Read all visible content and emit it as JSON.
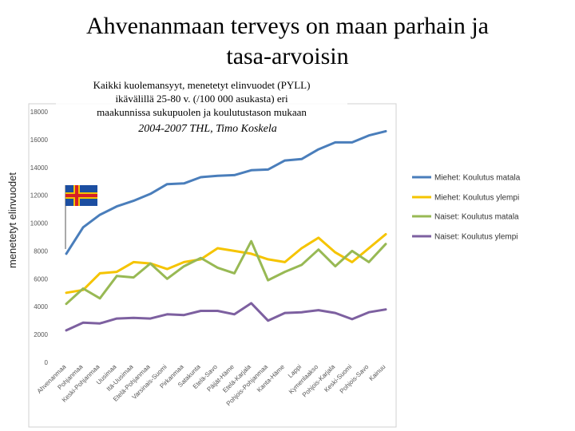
{
  "title_line1": "Ahvenanmaan terveys on maan parhain ja",
  "title_line2": "tasa-arvoisin",
  "subtitle_lines": [
    "Kaikki kuolemansyyt, menetetyt elinvuodet (PYLL)",
    "ikävälillä 25-80 v. (/100 000 asukasta) eri",
    "maakunnissa sukupuolen ja koulutustason mukaan"
  ],
  "source": "2004-2007 THL, Timo Koskela",
  "flag_icon": "aland-flag",
  "chart_data": {
    "type": "line",
    "title": "Kaikki kuolemansyyt, menetetyt elinvuodet (PYLL) ikävälillä 25-80 v. (/100 000 asukasta) eri maakunnissa sukupuolen ja koulutustason mukaan",
    "ylabel": "menetetyt elinvuodet",
    "xlabel": "",
    "ylim": [
      0,
      18000
    ],
    "yticks": [
      0,
      2000,
      4000,
      6000,
      8000,
      10000,
      12000,
      14000,
      16000,
      18000
    ],
    "grid": false,
    "legend": "right",
    "categories": [
      "Ahvenanmaa",
      "Pohjanmaa",
      "Keski-Pohjanmaa",
      "Uusimaa",
      "Itä-Uusimaa",
      "Etelä-Pohjanmaa",
      "Varsinais-Suomi",
      "Pirkanmaa",
      "Satakunta",
      "Etelä-Savo",
      "Päijät-Häme",
      "Etelä-Karjala",
      "Pohjois-Pohjanmaa",
      "Kanta-Häme",
      "Lappi",
      "Kymenlaakso",
      "Pohjois-Karjala",
      "Keski-Suomi",
      "Pohjois-Savo",
      "Kainuu"
    ],
    "series": [
      {
        "name": "Miehet: Koulutus matala",
        "color": "#4a7ebb",
        "values": [
          7800,
          9700,
          10600,
          11200,
          11600,
          12100,
          12800,
          12850,
          13300,
          13400,
          13450,
          13800,
          13850,
          14500,
          14600,
          15300,
          15800,
          15800,
          16300,
          16600
        ]
      },
      {
        "name": "Miehet: Koulutus ylempi",
        "color": "#f5c400",
        "values": [
          5000,
          5200,
          6400,
          6500,
          7200,
          7100,
          6700,
          7200,
          7400,
          8200,
          8000,
          7800,
          7400,
          7200,
          8200,
          8950,
          7900,
          7200,
          8200,
          9200
        ]
      },
      {
        "name": "Naiset: Koulutus matala",
        "color": "#98b954",
        "values": [
          4200,
          5300,
          4600,
          6200,
          6100,
          7100,
          6000,
          6900,
          7500,
          6800,
          6400,
          8700,
          5900,
          6500,
          7000,
          8100,
          6900,
          8000,
          7200,
          8500
        ]
      },
      {
        "name": "Naiset: Koulutus ylempi",
        "color": "#7d60a0",
        "values": [
          2300,
          2850,
          2800,
          3150,
          3200,
          3150,
          3450,
          3400,
          3700,
          3700,
          3450,
          4250,
          3000,
          3550,
          3600,
          3750,
          3550,
          3100,
          3600,
          3800
        ]
      }
    ]
  }
}
